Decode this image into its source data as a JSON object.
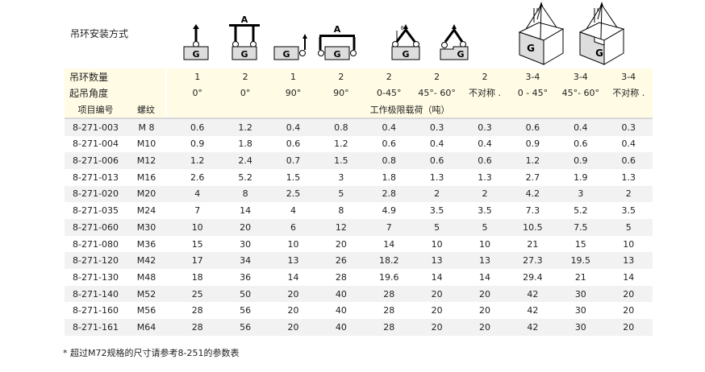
{
  "title": "吊环安装方式",
  "icons": [
    "single-vertical",
    "double-vertical-spreader",
    "single-side",
    "double-side-spreader",
    "double-angled",
    "double-asymmetric",
    "multi-angled-box",
    "multi-asymmetric-box"
  ],
  "icon_labels": {
    "weight": "G",
    "spreader": "A",
    "angle": "θ"
  },
  "header": {
    "count_label": "吊环数量",
    "angle_label": "起吊角度",
    "item_label": "项目编号",
    "thread_label": "螺纹",
    "load_label": "工作极限载荷（吨）",
    "counts": [
      "1",
      "2",
      "1",
      "2",
      "2",
      "2",
      "2",
      "3-4",
      "3-4",
      "3-4"
    ],
    "angles": [
      "0°",
      "0°",
      "90°",
      "90°",
      "0-45°",
      "45°- 60°",
      "不对称 .",
      "0 - 45°",
      "45°- 60°",
      "不对称 ."
    ]
  },
  "rows": [
    {
      "item": "8-271-003",
      "thread": "M 8",
      "v": [
        "0.6",
        "1.2",
        "0.4",
        "0.8",
        "0.4",
        "0.3",
        "0.3",
        "0.6",
        "0.4",
        "0.3"
      ]
    },
    {
      "item": "8-271-004",
      "thread": "M10",
      "v": [
        "0.9",
        "1.8",
        "0.6",
        "1.2",
        "0.6",
        "0.4",
        "0.4",
        "0.9",
        "0.6",
        "0.4"
      ]
    },
    {
      "item": "8-271-006",
      "thread": "M12",
      "v": [
        "1.2",
        "2.4",
        "0.7",
        "1.5",
        "0.8",
        "0.6",
        "0.6",
        "1.2",
        "0.9",
        "0.6"
      ]
    },
    {
      "item": "8-271-013",
      "thread": "M16",
      "v": [
        "2.6",
        "5.2",
        "1.5",
        "3",
        "1.8",
        "1.3",
        "1.3",
        "2.7",
        "1.9",
        "1.3"
      ]
    },
    {
      "item": "8-271-020",
      "thread": "M20",
      "v": [
        "4",
        "8",
        "2.5",
        "5",
        "2.8",
        "2",
        "2",
        "4.2",
        "3",
        "2"
      ]
    },
    {
      "item": "8-271-035",
      "thread": "M24",
      "v": [
        "7",
        "14",
        "4",
        "8",
        "4.9",
        "3.5",
        "3.5",
        "7.3",
        "5.2",
        "3.5"
      ]
    },
    {
      "item": "8-271-060",
      "thread": "M30",
      "v": [
        "10",
        "20",
        "6",
        "12",
        "7",
        "5",
        "5",
        "10.5",
        "7.5",
        "5"
      ]
    },
    {
      "item": "8-271-080",
      "thread": "M36",
      "v": [
        "15",
        "30",
        "10",
        "20",
        "14",
        "10",
        "10",
        "21",
        "15",
        "10"
      ]
    },
    {
      "item": "8-271-120",
      "thread": "M42",
      "v": [
        "17",
        "34",
        "13",
        "26",
        "18.2",
        "13",
        "13",
        "27.3",
        "19.5",
        "13"
      ]
    },
    {
      "item": "8-271-130",
      "thread": "M48",
      "v": [
        "18",
        "36",
        "14",
        "28",
        "19.6",
        "14",
        "14",
        "29.4",
        "21",
        "14"
      ]
    },
    {
      "item": "8-271-140",
      "thread": "M52",
      "v": [
        "25",
        "50",
        "20",
        "40",
        "28",
        "20",
        "20",
        "42",
        "30",
        "20"
      ]
    },
    {
      "item": "8-271-160",
      "thread": "M56",
      "v": [
        "28",
        "56",
        "20",
        "40",
        "28",
        "20",
        "20",
        "42",
        "30",
        "20"
      ]
    },
    {
      "item": "8-271-161",
      "thread": "M64",
      "v": [
        "28",
        "56",
        "20",
        "40",
        "28",
        "20",
        "20",
        "42",
        "30",
        "20"
      ]
    }
  ],
  "note": "* 超过M72规格的尺寸请参考8-251的参数表"
}
